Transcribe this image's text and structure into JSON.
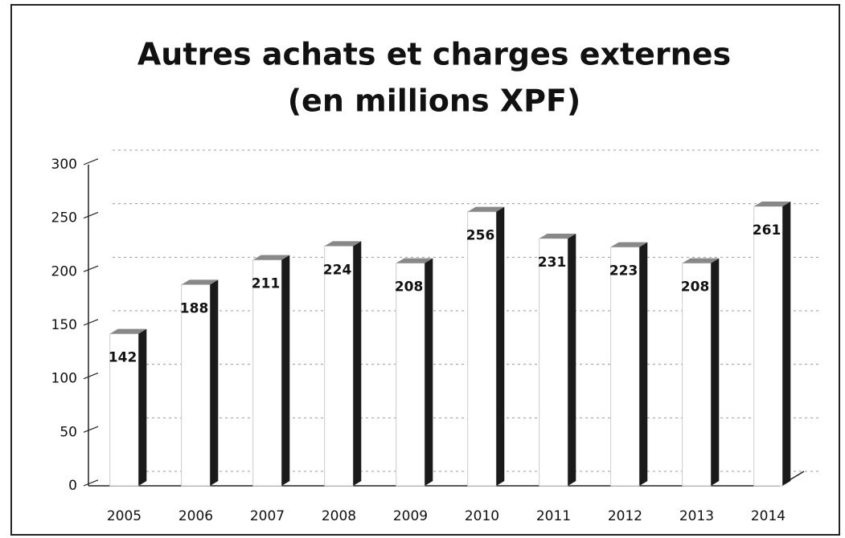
{
  "chart_data": {
    "type": "bar",
    "title": "Autres achats et charges externes",
    "subtitle": "(en millions XPF)",
    "categories": [
      "2005",
      "2006",
      "2007",
      "2008",
      "2009",
      "2010",
      "2011",
      "2012",
      "2013",
      "2014"
    ],
    "values": [
      142,
      188,
      211,
      224,
      208,
      256,
      231,
      223,
      208,
      261
    ],
    "color": "#ffffff",
    "side_color": "#1a1a1a",
    "ylim": [
      0,
      300
    ],
    "yticks": [
      0,
      50,
      100,
      150,
      200,
      250,
      300
    ],
    "grid": true
  }
}
